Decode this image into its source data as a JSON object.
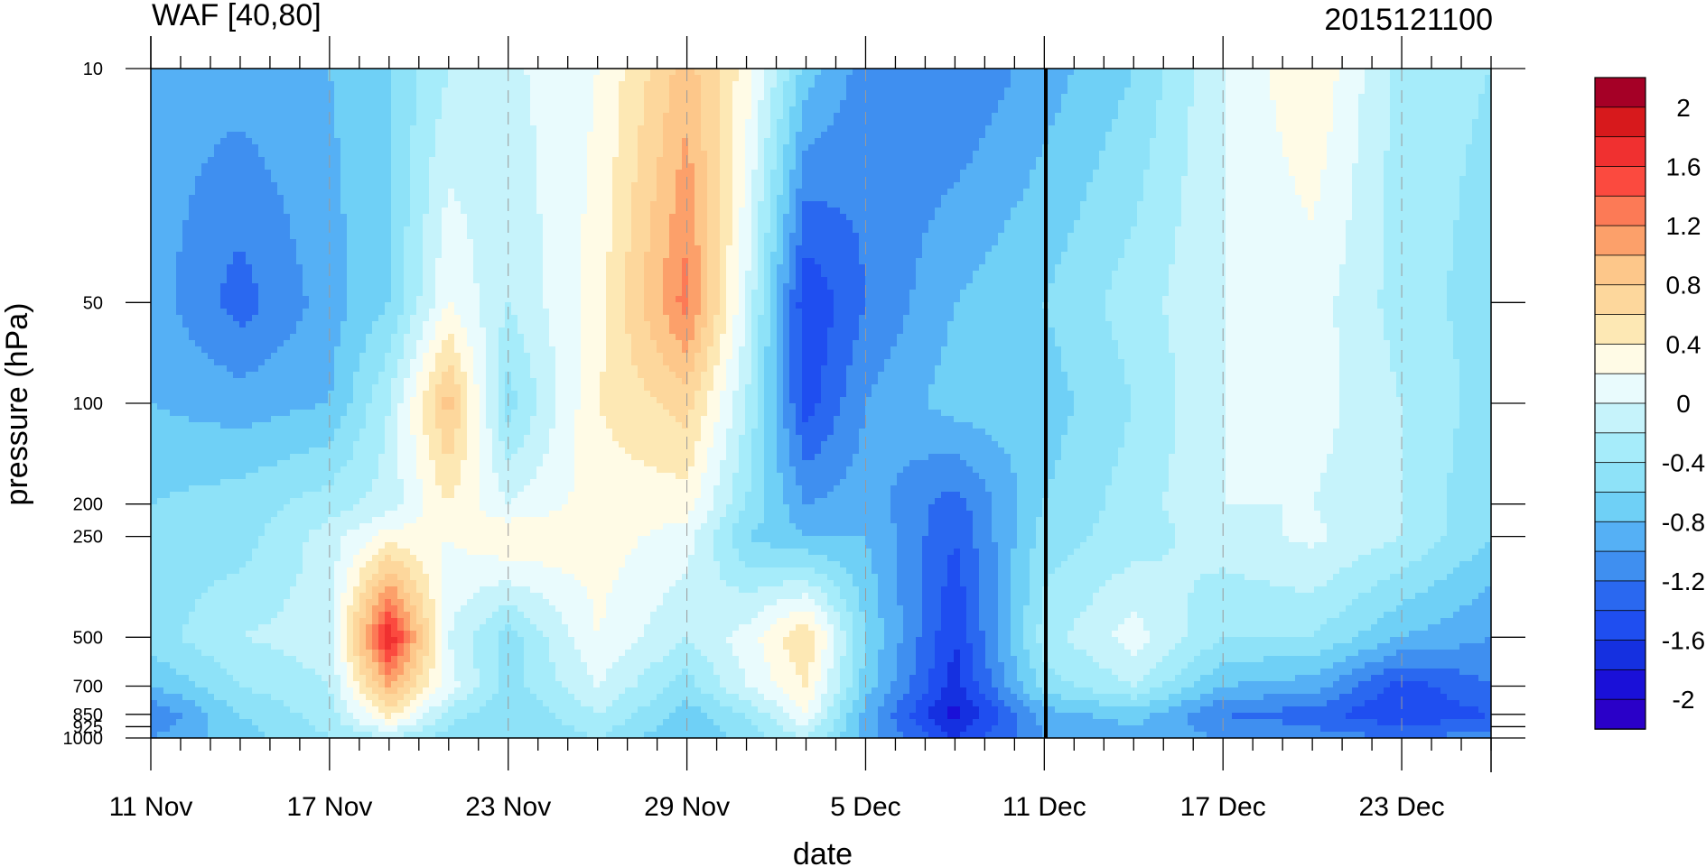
{
  "chart_data": {
    "type": "heatmap",
    "title_left": "WAF [40,80]",
    "title_right": "2015121100",
    "xlabel": "date",
    "ylabel": "pressure (hPa)",
    "x_ticks": [
      "11 Nov",
      "17 Nov",
      "23 Nov",
      "29 Nov",
      "5 Dec",
      "11 Dec",
      "17 Dec",
      "23 Dec"
    ],
    "x_tick_days": [
      0,
      6,
      12,
      18,
      24,
      30,
      36,
      42
    ],
    "xlim_days": [
      0,
      45
    ],
    "y_ticks": [
      10,
      50,
      100,
      200,
      250,
      500,
      700,
      850,
      925,
      1000
    ],
    "y_scale": "log",
    "ylim": [
      1000,
      10
    ],
    "current_date_marker": "11 Dec",
    "colorbar": {
      "levels": [
        -2.2,
        -2.0,
        -1.8,
        -1.6,
        -1.4,
        -1.2,
        -1.0,
        -0.8,
        -0.6,
        -0.4,
        -0.2,
        0.0,
        0.2,
        0.4,
        0.6,
        0.8,
        1.0,
        1.2,
        1.4,
        1.6,
        1.8,
        2.0,
        2.2
      ],
      "labels": [
        "2",
        "1.6",
        "1.2",
        "0.8",
        "0.4",
        "0",
        "-0.4",
        "-0.8",
        "-1.2",
        "-1.6",
        "-2"
      ],
      "label_values": [
        2.0,
        1.6,
        1.2,
        0.8,
        0.4,
        0.0,
        -0.4,
        -0.8,
        -1.2,
        -1.6,
        -2.0
      ],
      "colors": [
        "#a50026",
        "#d7191c",
        "#f03030",
        "#fb4a3f",
        "#fc7a56",
        "#fca06a",
        "#fdc78a",
        "#fdd79c",
        "#fde8b4",
        "#fffbe6",
        "#e9fbfd",
        "#c6f3fb",
        "#a6ecfa",
        "#8ee2f8",
        "#6fd0f6",
        "#55b0f5",
        "#3f8ff0",
        "#2a68f0",
        "#1f4ef0",
        "#1530e0",
        "#1a10d8",
        "#2a00c8"
      ]
    },
    "waf_grid": {
      "x_days": [
        0,
        3,
        6,
        8,
        10,
        12,
        15,
        18,
        20,
        22,
        24,
        27,
        30,
        33,
        36,
        39,
        42,
        45
      ],
      "pressure": [
        10,
        50,
        100,
        200,
        250,
        500,
        700,
        850,
        1000
      ],
      "values": [
        [
          -0.9,
          -0.9,
          -0.8,
          -0.6,
          -0.2,
          -0.05,
          0.2,
          0.9,
          0.3,
          -0.7,
          -1.1,
          -1.2,
          -0.9,
          -0.6,
          0.0,
          0.4,
          -0.3,
          -0.4
        ],
        [
          -0.9,
          -1.3,
          -0.9,
          -0.6,
          0.2,
          -0.2,
          0.3,
          1.3,
          0.0,
          -1.6,
          -1.2,
          -0.8,
          -0.6,
          -0.3,
          0.0,
          0.1,
          -0.3,
          -0.5
        ],
        [
          -0.8,
          -0.9,
          -0.8,
          -0.2,
          0.9,
          -0.5,
          0.4,
          0.7,
          -0.2,
          -1.5,
          -1.0,
          -0.7,
          -0.7,
          -0.4,
          0.0,
          0.1,
          -0.2,
          -0.5
        ],
        [
          -0.6,
          -0.5,
          -0.3,
          -0.1,
          0.4,
          0.0,
          0.3,
          0.3,
          -0.4,
          -1.0,
          -0.9,
          -1.3,
          -0.6,
          -0.3,
          0.0,
          0.0,
          -0.2,
          -0.6
        ],
        [
          -0.5,
          -0.5,
          -0.1,
          0.3,
          0.2,
          0.4,
          0.3,
          0.1,
          -0.6,
          -0.8,
          -0.8,
          -1.4,
          -0.5,
          -0.3,
          -0.1,
          0.05,
          -0.2,
          -0.6
        ],
        [
          -0.5,
          -0.2,
          -0.1,
          1.8,
          0.0,
          -0.5,
          0.2,
          -0.2,
          0.1,
          0.6,
          -0.6,
          -1.6,
          -0.3,
          0.1,
          -0.4,
          -0.4,
          -0.8,
          -1.0
        ],
        [
          -0.8,
          -0.4,
          -0.2,
          1.0,
          0.1,
          -0.5,
          0.0,
          -0.5,
          0.0,
          0.4,
          -0.7,
          -1.7,
          -0.5,
          -0.2,
          -0.8,
          -0.9,
          -1.5,
          -1.2
        ],
        [
          -1.2,
          -0.6,
          -0.3,
          0.5,
          -0.3,
          -0.6,
          -0.2,
          -0.7,
          -0.4,
          0.2,
          -0.9,
          -1.9,
          -0.9,
          -0.7,
          -1.2,
          -1.3,
          -1.6,
          -1.4
        ],
        [
          -1.0,
          -0.7,
          -0.4,
          -0.2,
          -0.5,
          -0.6,
          -0.4,
          -0.8,
          -0.5,
          -0.2,
          -0.9,
          -1.6,
          -1.0,
          -0.9,
          -1.0,
          -1.1,
          -1.2,
          -1.1
        ]
      ]
    }
  }
}
